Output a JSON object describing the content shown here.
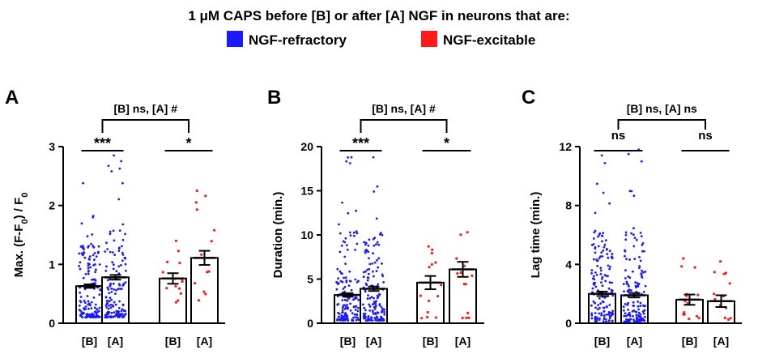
{
  "header": {
    "title_pre": "1 ",
    "title_mu": "μ",
    "title_post": "M CAPS before [B] or after [A] NGF in neurons that are:"
  },
  "legend": [
    {
      "label": "NGF-refractory",
      "color": "#1a1aff"
    },
    {
      "label": "NGF-excitable",
      "color": "#ff1a1a"
    }
  ],
  "colors": {
    "refractory": "#1a1aff",
    "excitable": "#ff1a1a",
    "axis": "#000000"
  },
  "chart_data": [
    {
      "type": "bar",
      "panel": "A",
      "ylabel_main": "Max. (F-F",
      "ylabel_sub": "0",
      "ylabel_mid": ") / F",
      "ylabel_sub2": "0",
      "ylim": [
        0,
        3
      ],
      "yticks": [
        0,
        1,
        2,
        3
      ],
      "categories": [
        "[B]",
        "[A]",
        "[B]",
        "[A]"
      ],
      "groups": [
        "NGF-refractory",
        "NGF-refractory",
        "NGF-excitable",
        "NGF-excitable"
      ],
      "series": [
        {
          "name": "mean",
          "values": [
            0.63,
            0.78,
            0.76,
            1.11
          ]
        },
        {
          "name": "sem",
          "values": [
            0.03,
            0.04,
            0.09,
            0.12
          ]
        }
      ],
      "points_summary": [
        {
          "n": 150,
          "min": 0.1,
          "max": 2.38
        },
        {
          "n": 150,
          "min": 0.1,
          "max": 2.85
        },
        {
          "n": 14,
          "min": 0.35,
          "max": 1.4
        },
        {
          "n": 13,
          "min": 0.35,
          "max": 2.25
        }
      ],
      "annotations": {
        "top": "[B] ns, [A] #",
        "pair1": "***",
        "pair2": "*"
      }
    },
    {
      "type": "bar",
      "panel": "B",
      "ylabel_main": "Duration (min.)",
      "ylim": [
        0,
        20
      ],
      "yticks": [
        0,
        5,
        10,
        15,
        20
      ],
      "categories": [
        "[B]",
        "[A]",
        "[B]",
        "[A]"
      ],
      "groups": [
        "NGF-refractory",
        "NGF-refractory",
        "NGF-excitable",
        "NGF-excitable"
      ],
      "series": [
        {
          "name": "mean",
          "values": [
            3.2,
            3.9,
            4.6,
            6.1
          ]
        },
        {
          "name": "sem",
          "values": [
            0.2,
            0.25,
            0.75,
            0.85
          ]
        }
      ],
      "points_summary": [
        {
          "n": 150,
          "min": 0.3,
          "max": 18.8
        },
        {
          "n": 150,
          "min": 0.3,
          "max": 18.8
        },
        {
          "n": 14,
          "min": 0.5,
          "max": 8.7
        },
        {
          "n": 13,
          "min": 0.6,
          "max": 10.3
        }
      ],
      "annotations": {
        "top": "[B] ns, [A] #",
        "pair1": "***",
        "pair2": "*"
      }
    },
    {
      "type": "bar",
      "panel": "C",
      "ylabel_main": "Lag time (min.)",
      "ylim": [
        0,
        12
      ],
      "yticks": [
        0,
        4,
        8,
        12
      ],
      "categories": [
        "[B]",
        "[A]",
        "[B]",
        "[A]"
      ],
      "groups": [
        "NGF-refractory",
        "NGF-refractory",
        "NGF-excitable",
        "NGF-excitable"
      ],
      "series": [
        {
          "name": "mean",
          "values": [
            2.0,
            1.9,
            1.6,
            1.5
          ]
        },
        {
          "name": "sem",
          "values": [
            0.15,
            0.15,
            0.35,
            0.4
          ]
        }
      ],
      "points_summary": [
        {
          "n": 150,
          "min": 0.1,
          "max": 11.4
        },
        {
          "n": 150,
          "min": 0.1,
          "max": 11.8
        },
        {
          "n": 14,
          "min": 0.2,
          "max": 4.4
        },
        {
          "n": 13,
          "min": 0.2,
          "max": 4.2
        }
      ],
      "annotations": {
        "top": "[B] ns, [A] ns",
        "pair1": "ns",
        "pair2": "ns"
      }
    }
  ]
}
